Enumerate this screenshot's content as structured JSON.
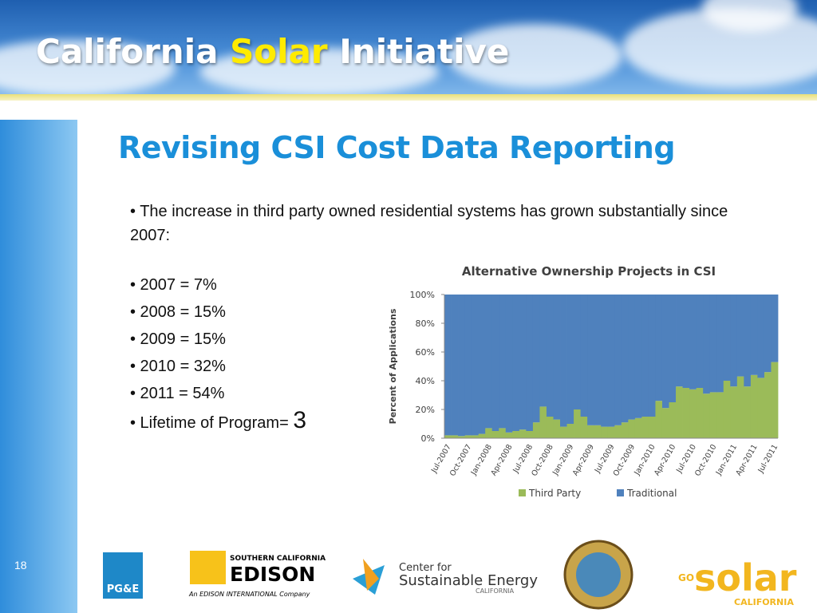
{
  "header": {
    "title": [
      "California",
      "Solar",
      "Initiative"
    ]
  },
  "slide": {
    "heading": "Revising CSI Cost Data Reporting",
    "intro": "• The increase in third party owned residential systems has grown substantially since 2007:",
    "bullets": [
      "• 2007 = 7%",
      "• 2008 = 15%",
      "• 2009 = 15%",
      "• 2010 = 32%",
      "• 2011 = 54%"
    ],
    "lifetime": [
      "• Lifetime of Program=",
      "3"
    ],
    "page_number": "18"
  },
  "logos": {
    "pge": "PG&E",
    "edison": [
      "SOUTHERN CALIFORNIA",
      "EDISON",
      "An EDISON INTERNATIONAL Company"
    ],
    "cse": [
      "Center for",
      "Sustainable Energy",
      "CALIFORNIA"
    ],
    "gosolar": [
      "GO",
      "solar",
      "CALIFORNIA"
    ]
  },
  "chart_data": {
    "type": "stacked_bar",
    "title": "Alternative Ownership Projects in CSI",
    "y_label": "Percent of Applications",
    "categories": [
      "Jul-2007",
      null,
      null,
      "Oct-2007",
      null,
      null,
      "Jan-2008",
      null,
      null,
      "Apr-2008",
      null,
      null,
      "Jul-2008",
      null,
      null,
      "Oct-2008",
      null,
      null,
      "Jan-2009",
      null,
      null,
      "Apr-2009",
      null,
      null,
      "Jul-2009",
      null,
      null,
      "Oct-2009",
      null,
      null,
      "Jan-2010",
      null,
      null,
      "Apr-2010",
      null,
      null,
      "Jul-2010",
      null,
      null,
      "Oct-2010",
      null,
      null,
      "Jan-2011",
      null,
      null,
      "Apr-2011",
      null,
      null,
      "Jul-2011"
    ],
    "series": [
      {
        "name": "Third Party",
        "color": "#9bbb59",
        "values": [
          2,
          2,
          1.5,
          2,
          2,
          3,
          7,
          5,
          7,
          4,
          5,
          6,
          5,
          11,
          22,
          15,
          13,
          8,
          10,
          20,
          15,
          9,
          9,
          8,
          8,
          9,
          11,
          13,
          14,
          15,
          15,
          26,
          21,
          25,
          36,
          35,
          34,
          35,
          31,
          32,
          32,
          40,
          36,
          43,
          36,
          44,
          42,
          46,
          53
        ]
      },
      {
        "name": "Traditional",
        "color": "#4f81bd",
        "values": [
          98,
          98,
          98.5,
          98,
          98,
          97,
          93,
          95,
          93,
          96,
          95,
          94,
          95,
          89,
          78,
          85,
          87,
          92,
          90,
          80,
          85,
          91,
          91,
          92,
          92,
          91,
          89,
          87,
          86,
          85,
          85,
          74,
          79,
          75,
          64,
          65,
          66,
          65,
          69,
          68,
          68,
          60,
          64,
          57,
          64,
          56,
          58,
          54,
          47
        ]
      }
    ],
    "ylim": [
      0,
      100
    ],
    "yticks": [
      {
        "value": 0,
        "label": "0%"
      },
      {
        "value": 20,
        "label": "20%"
      },
      {
        "value": 40,
        "label": "40%"
      },
      {
        "value": 60,
        "label": "60%"
      },
      {
        "value": 80,
        "label": "80%"
      },
      {
        "value": 100,
        "label": "100%"
      }
    ],
    "legend": "bottom"
  }
}
